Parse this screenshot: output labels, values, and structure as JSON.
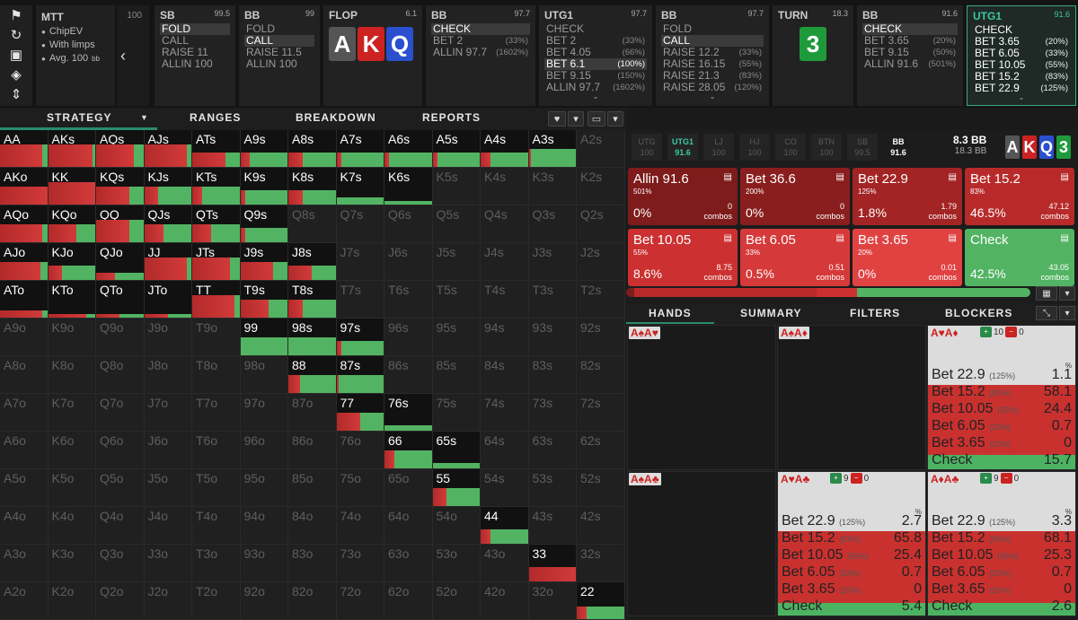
{
  "toolbar": {
    "icons": [
      "bookmark-icon",
      "history-icon",
      "save-icon",
      "gamepad-icon",
      "split-icon"
    ]
  },
  "meta": {
    "title": "MTT",
    "rows": [
      "ChipEV",
      "With limps",
      "Avg. 100"
    ],
    "avg_unit": "bb"
  },
  "peek": {
    "stack": "100"
  },
  "columns": [
    {
      "pos": "SB",
      "stack": "99.5",
      "items": [
        {
          "l": "FOLD",
          "p": "",
          "sel": true
        },
        {
          "l": "CALL",
          "p": ""
        },
        {
          "l": "RAISE 11",
          "p": ""
        },
        {
          "l": "ALLIN 100",
          "p": ""
        }
      ]
    },
    {
      "pos": "BB",
      "stack": "99",
      "items": [
        {
          "l": "FOLD",
          "p": ""
        },
        {
          "l": "CALL",
          "p": "",
          "sel": true
        },
        {
          "l": "RAISE 11.5",
          "p": ""
        },
        {
          "l": "ALLIN 100",
          "p": ""
        }
      ]
    },
    {
      "pos": "FLOP",
      "stack": "6.1",
      "cards": [
        {
          "r": "A",
          "c": "#555"
        },
        {
          "r": "K",
          "c": "#c22"
        },
        {
          "r": "Q",
          "c": "#2a4fcf"
        }
      ]
    },
    {
      "pos": "BB",
      "stack": "97.7",
      "items": [
        {
          "l": "CHECK",
          "p": "",
          "sel": true
        },
        {
          "l": "BET 2",
          "p": "(33%)"
        },
        {
          "l": "ALLIN 97.7",
          "p": "(1602%)"
        }
      ]
    },
    {
      "pos": "UTG1",
      "stack": "97.7",
      "items": [
        {
          "l": "CHECK",
          "p": ""
        },
        {
          "l": "BET 2",
          "p": "(33%)"
        },
        {
          "l": "BET 4.05",
          "p": "(66%)"
        },
        {
          "l": "BET 6.1",
          "p": "(100%)",
          "sel": true
        },
        {
          "l": "BET 9.15",
          "p": "(150%)"
        },
        {
          "l": "ALLIN 97.7",
          "p": "(1602%)"
        }
      ]
    },
    {
      "pos": "BB",
      "stack": "97.7",
      "items": [
        {
          "l": "FOLD",
          "p": ""
        },
        {
          "l": "CALL",
          "p": "",
          "sel": true
        },
        {
          "l": "RAISE 12.2",
          "p": "(33%)"
        },
        {
          "l": "RAISE 16.15",
          "p": "(55%)"
        },
        {
          "l": "RAISE 21.3",
          "p": "(83%)"
        },
        {
          "l": "RAISE 28.05",
          "p": "(120%)"
        }
      ]
    },
    {
      "pos": "TURN",
      "stack": "18.3",
      "cards": [
        {
          "r": "3",
          "c": "#1f9a3a"
        }
      ]
    },
    {
      "pos": "BB",
      "stack": "91.6",
      "items": [
        {
          "l": "CHECK",
          "p": "",
          "sel": true
        },
        {
          "l": "BET 3.65",
          "p": "(20%)"
        },
        {
          "l": "BET 9.15",
          "p": "(50%)"
        },
        {
          "l": "ALLIN 91.6",
          "p": "(501%)"
        }
      ]
    },
    {
      "pos": "UTG1",
      "stack": "91.6",
      "active": true,
      "items": [
        {
          "l": "CHECK",
          "p": ""
        },
        {
          "l": "BET 3.65",
          "p": "(20%)"
        },
        {
          "l": "BET 6.05",
          "p": "(33%)"
        },
        {
          "l": "BET 10.05",
          "p": "(55%)"
        },
        {
          "l": "BET 15.2",
          "p": "(83%)"
        },
        {
          "l": "BET 22.9",
          "p": "(125%)"
        }
      ]
    }
  ],
  "tabs": [
    "STRATEGY",
    "RANGES",
    "BREAKDOWN",
    "REPORTS"
  ],
  "grid": [
    [
      "AA",
      "AKs",
      "AQs",
      "AJs",
      "ATs",
      "A9s",
      "A8s",
      "A7s",
      "A6s",
      "A5s",
      "A4s",
      "A3s",
      "A2s"
    ],
    [
      "AKo",
      "KK",
      "KQs",
      "KJs",
      "KTs",
      "K9s",
      "K8s",
      "K7s",
      "K6s",
      "K5s",
      "K4s",
      "K3s",
      "K2s"
    ],
    [
      "AQo",
      "KQo",
      "QQ",
      "QJs",
      "QTs",
      "Q9s",
      "Q8s",
      "Q7s",
      "Q6s",
      "Q5s",
      "Q4s",
      "Q3s",
      "Q2s"
    ],
    [
      "AJo",
      "KJo",
      "QJo",
      "JJ",
      "JTs",
      "J9s",
      "J8s",
      "J7s",
      "J6s",
      "J5s",
      "J4s",
      "J3s",
      "J2s"
    ],
    [
      "ATo",
      "KTo",
      "QTo",
      "JTo",
      "TT",
      "T9s",
      "T8s",
      "T7s",
      "T6s",
      "T5s",
      "T4s",
      "T3s",
      "T2s"
    ],
    [
      "A9o",
      "K9o",
      "Q9o",
      "J9o",
      "T9o",
      "99",
      "98s",
      "97s",
      "96s",
      "95s",
      "94s",
      "93s",
      "92s"
    ],
    [
      "A8o",
      "K8o",
      "Q8o",
      "J8o",
      "T8o",
      "98o",
      "88",
      "87s",
      "86s",
      "85s",
      "84s",
      "83s",
      "82s"
    ],
    [
      "A7o",
      "K7o",
      "Q7o",
      "J7o",
      "T7o",
      "97o",
      "87o",
      "77",
      "76s",
      "75s",
      "74s",
      "73s",
      "72s"
    ],
    [
      "A6o",
      "K6o",
      "Q6o",
      "J6o",
      "T6o",
      "96o",
      "86o",
      "76o",
      "66",
      "65s",
      "64s",
      "63s",
      "62s"
    ],
    [
      "A5o",
      "K5o",
      "Q5o",
      "J5o",
      "T5o",
      "95o",
      "85o",
      "75o",
      "65o",
      "55",
      "54s",
      "53s",
      "52s"
    ],
    [
      "A4o",
      "K4o",
      "Q4o",
      "J4o",
      "T4o",
      "94o",
      "84o",
      "74o",
      "64o",
      "54o",
      "44",
      "43s",
      "42s"
    ],
    [
      "A3o",
      "K3o",
      "Q3o",
      "J3o",
      "T3o",
      "93o",
      "83o",
      "73o",
      "63o",
      "53o",
      "43o",
      "33",
      "32s"
    ],
    [
      "A2o",
      "K2o",
      "Q2o",
      "J2o",
      "T2o",
      "92o",
      "82o",
      "72o",
      "62o",
      "52o",
      "42o",
      "32o",
      "22"
    ]
  ],
  "grid_active": {
    "AA": [
      0.9,
      0.1,
      0.6
    ],
    "AKs": [
      0.95,
      0.05,
      0.6
    ],
    "AQs": [
      0.8,
      0.2,
      0.6
    ],
    "AJs": [
      0.9,
      0.1,
      0.6
    ],
    "ATs": [
      0.7,
      0.3,
      0.4
    ],
    "A9s": [
      0.2,
      0.8,
      0.4
    ],
    "A8s": [
      0.3,
      0.7,
      0.4
    ],
    "A7s": [
      0.1,
      0.9,
      0.4
    ],
    "A6s": [
      0.1,
      0.9,
      0.4
    ],
    "A5s": [
      0.1,
      0.9,
      0.4
    ],
    "A4s": [
      0.2,
      0.8,
      0.4
    ],
    "A3s": [
      0.05,
      0.95,
      0.5
    ],
    "AKo": [
      1.0,
      0.0,
      0.5
    ],
    "KK": [
      1.0,
      0.0,
      0.6
    ],
    "KQs": [
      0.7,
      0.3,
      0.5
    ],
    "KJs": [
      0.3,
      0.7,
      0.5
    ],
    "KTs": [
      0.2,
      0.8,
      0.5
    ],
    "K9s": [
      0.1,
      0.9,
      0.4
    ],
    "K8s": [
      0.3,
      0.7,
      0.4
    ],
    "K7s": [
      0.0,
      1.0,
      0.2
    ],
    "K6s": [
      0.0,
      1.0,
      0.1
    ],
    "AQo": [
      0.9,
      0.1,
      0.5
    ],
    "KQo": [
      0.6,
      0.4,
      0.5
    ],
    "QQ": [
      0.7,
      0.3,
      0.6
    ],
    "QJs": [
      0.4,
      0.6,
      0.5
    ],
    "QTs": [
      0.4,
      0.6,
      0.5
    ],
    "Q9s": [
      0.1,
      0.9,
      0.4
    ],
    "AJo": [
      0.85,
      0.15,
      0.5
    ],
    "KJo": [
      0.3,
      0.7,
      0.4
    ],
    "QJo": [
      0.4,
      0.6,
      0.2
    ],
    "JJ": [
      0.9,
      0.1,
      0.6
    ],
    "JTs": [
      0.8,
      0.2,
      0.6
    ],
    "J9s": [
      0.7,
      0.3,
      0.5
    ],
    "J8s": [
      0.5,
      0.5,
      0.4
    ],
    "ATo": [
      0.9,
      0.1,
      0.2
    ],
    "KTo": [
      0.8,
      0.2,
      0.1
    ],
    "QTo": [
      0.5,
      0.5,
      0.1
    ],
    "JTo": [
      0.5,
      0.5,
      0.1
    ],
    "TT": [
      0.9,
      0.1,
      0.6
    ],
    "T9s": [
      0.6,
      0.4,
      0.5
    ],
    "T8s": [
      0.3,
      0.7,
      0.5
    ],
    "99": [
      0.0,
      1.0,
      0.5
    ],
    "98s": [
      0.0,
      1.0,
      0.5
    ],
    "97s": [
      0.1,
      0.9,
      0.4
    ],
    "88": [
      0.25,
      0.75,
      0.5
    ],
    "87s": [
      0.05,
      0.95,
      0.5
    ],
    "77": [
      0.5,
      0.5,
      0.5
    ],
    "76s": [
      0.0,
      1.0,
      0.15
    ],
    "66": [
      0.2,
      0.8,
      0.5
    ],
    "65s": [
      0.0,
      1.0,
      0.15
    ],
    "55": [
      0.3,
      0.7,
      0.5
    ],
    "44": [
      0.2,
      0.8,
      0.4
    ],
    "33": [
      1.0,
      0.0,
      0.4
    ],
    "22": [
      0.2,
      0.8,
      0.35
    ]
  },
  "positions": [
    {
      "n": "UTG",
      "s": "100"
    },
    {
      "n": "UTG1",
      "s": "91.6",
      "cur": true
    },
    {
      "n": "LJ",
      "s": "100"
    },
    {
      "n": "HJ",
      "s": "100"
    },
    {
      "n": "CO",
      "s": "100"
    },
    {
      "n": "BTN",
      "s": "100"
    },
    {
      "n": "SB",
      "s": "99.5"
    },
    {
      "n": "BB",
      "s": "91.6",
      "bb": true
    }
  ],
  "pot": {
    "main": "8.3 BB",
    "sub": "18.3 BB"
  },
  "board": [
    {
      "r": "A",
      "c": "#555"
    },
    {
      "r": "K",
      "c": "#c22"
    },
    {
      "r": "Q",
      "c": "#2a4fcf"
    },
    {
      "r": "3",
      "c": "#1f9a3a"
    }
  ],
  "actions": [
    {
      "name": "Allin 91.6",
      "size": "501%",
      "freq": "0%",
      "combos": "0",
      "bg": "#7e1b1b"
    },
    {
      "name": "Bet 36.6",
      "size": "200%",
      "freq": "0%",
      "combos": "0",
      "bg": "#8a1e1e"
    },
    {
      "name": "Bet 22.9",
      "size": "125%",
      "freq": "1.8%",
      "combos": "1.79",
      "bg": "#a32424"
    },
    {
      "name": "Bet 15.2",
      "size": "83%",
      "freq": "46.5%",
      "combos": "47.12",
      "bg": "#b82a2a"
    },
    {
      "name": "Bet 10.05",
      "size": "55%",
      "freq": "8.6%",
      "combos": "8.75",
      "bg": "#cc3030"
    },
    {
      "name": "Bet 6.05",
      "size": "33%",
      "freq": "0.5%",
      "combos": "0.51",
      "bg": "#d63939"
    },
    {
      "name": "Bet 3.65",
      "size": "20%",
      "freq": "0%",
      "combos": "0.01",
      "bg": "#e04242"
    },
    {
      "name": "Check",
      "size": "",
      "freq": "42.5%",
      "combos": "43.05",
      "bg": "#52b463"
    }
  ],
  "combos_label": "combos",
  "summary_bar": [
    {
      "w": 0.02,
      "c": "#7e1b1b"
    },
    {
      "w": 0.45,
      "c": "#b82a2a"
    },
    {
      "w": 0.1,
      "c": "#cc3030"
    },
    {
      "w": 0.43,
      "c": "#52b463"
    }
  ],
  "rtabs": [
    "HANDS",
    "SUMMARY",
    "FILTERS",
    "BLOCKERS"
  ],
  "hands": [
    {
      "label": "A♠A♥",
      "live": false
    },
    {
      "label": "A♠A♦",
      "live": false
    },
    {
      "label": "A♥A♦",
      "live": true,
      "b1": "10",
      "b2": "0",
      "rows": [
        {
          "a": "Bet 22.9",
          "p": "(125%)",
          "v": "1.1"
        },
        {
          "a": "Bet 15.2",
          "p": "(83%)",
          "v": "58.1"
        },
        {
          "a": "Bet 10.05",
          "p": "(55%)",
          "v": "24.4"
        },
        {
          "a": "Bet 6.05",
          "p": "(33%)",
          "v": "0.7"
        },
        {
          "a": "Bet 3.65",
          "p": "(20%)",
          "v": "0"
        },
        {
          "a": "Check",
          "p": "",
          "v": "15.7"
        }
      ],
      "green": 0.157
    },
    {
      "label": "A♠A♣",
      "live": false
    },
    {
      "label": "A♥A♣",
      "live": true,
      "b1": "9",
      "b2": "0",
      "rows": [
        {
          "a": "Bet 22.9",
          "p": "(125%)",
          "v": "2.7"
        },
        {
          "a": "Bet 15.2",
          "p": "(83%)",
          "v": "65.8"
        },
        {
          "a": "Bet 10.05",
          "p": "(55%)",
          "v": "25.4"
        },
        {
          "a": "Bet 6.05",
          "p": "(33%)",
          "v": "0.7"
        },
        {
          "a": "Bet 3.65",
          "p": "(20%)",
          "v": "0"
        },
        {
          "a": "Check",
          "p": "",
          "v": "5.4"
        }
      ],
      "green": 0.054
    },
    {
      "label": "A♦A♣",
      "live": true,
      "b1": "9",
      "b2": "0",
      "rows": [
        {
          "a": "Bet 22.9",
          "p": "(125%)",
          "v": "3.3"
        },
        {
          "a": "Bet 15.2",
          "p": "(83%)",
          "v": "68.1"
        },
        {
          "a": "Bet 10.05",
          "p": "(55%)",
          "v": "25.3"
        },
        {
          "a": "Bet 6.05",
          "p": "(33%)",
          "v": "0.7"
        },
        {
          "a": "Bet 3.65",
          "p": "(20%)",
          "v": "0"
        },
        {
          "a": "Check",
          "p": "",
          "v": "2.6"
        }
      ],
      "green": 0.026
    }
  ],
  "pct_label": "%"
}
